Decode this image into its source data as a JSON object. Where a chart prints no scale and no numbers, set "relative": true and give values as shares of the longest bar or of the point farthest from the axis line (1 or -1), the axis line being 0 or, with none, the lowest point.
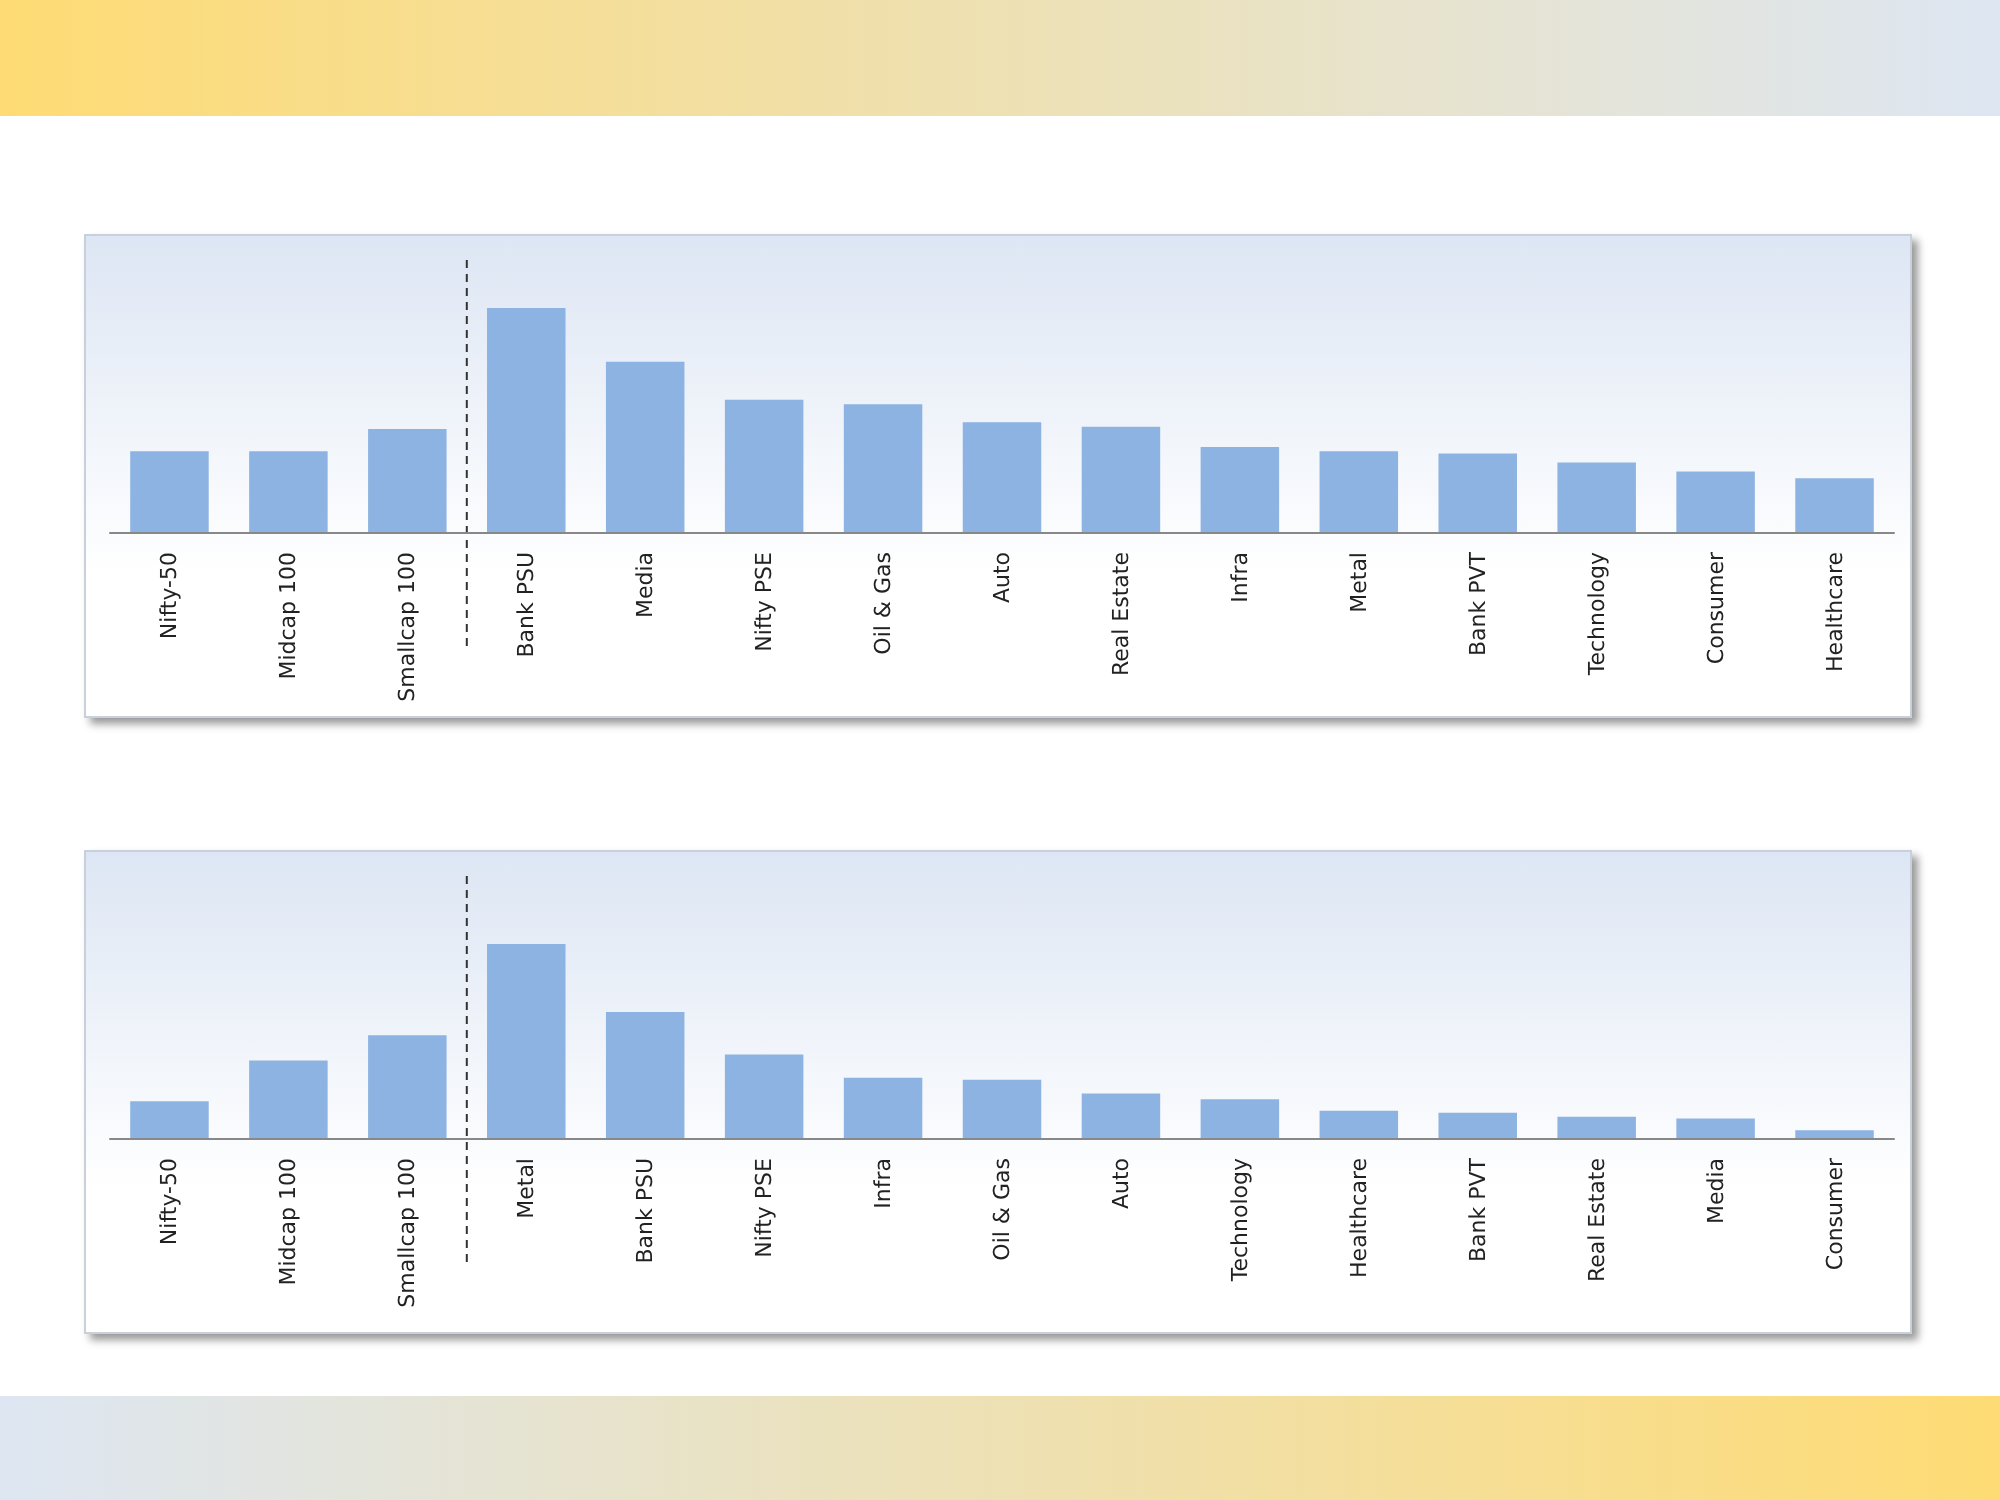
{
  "chart_data": [
    {
      "type": "bar",
      "relative": true,
      "categories": [
        "Nifty-50",
        "Midcap 100",
        "Smallcap 100",
        "Bank PSU",
        "Media",
        "Nifty PSE",
        "Oil & Gas",
        "Auto",
        "Real Estate",
        "Infra",
        "Metal",
        "Bank PVT",
        "Technology",
        "Consumer",
        "Healthcare"
      ],
      "values": [
        0.36,
        0.36,
        0.46,
        1,
        0.76,
        0.59,
        0.57,
        0.49,
        0.47,
        0.38,
        0.36,
        0.35,
        0.31,
        0.27,
        0.24
      ],
      "color": "#8db3e2"
    },
    {
      "type": "bar",
      "relative": true,
      "categories": [
        "Nifty-50",
        "Midcap 100",
        "Smallcap 100",
        "Metal",
        "Bank PSU",
        "Nifty PSE",
        "Infra",
        "Oil & Gas",
        "Auto",
        "Technology",
        "Healthcare",
        "Bank PVT",
        "Real Estate",
        "Media",
        "Consumer"
      ],
      "values": [
        0.19,
        0.4,
        0.53,
        1,
        0.65,
        0.43,
        0.31,
        0.3,
        0.23,
        0.2,
        0.14,
        0.13,
        0.11,
        0.1,
        0.04
      ],
      "color": "#8db3e2"
    }
  ]
}
